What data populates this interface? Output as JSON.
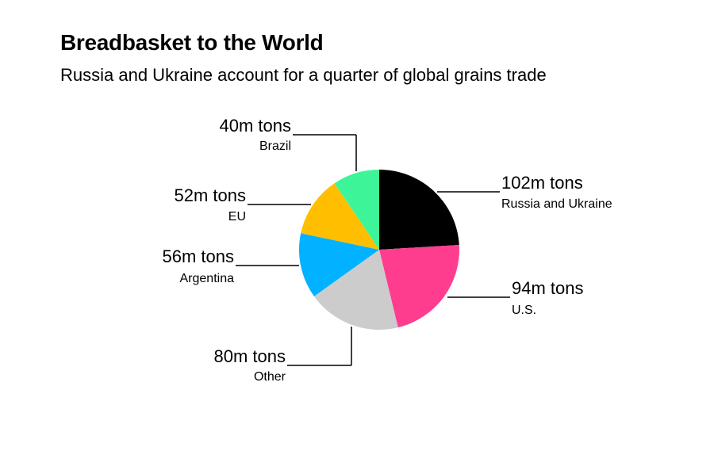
{
  "title": "Breadbasket to the World",
  "subtitle": "Russia and Ukraine account for a quarter of global grains trade",
  "chart_data": {
    "type": "pie",
    "unit": "m tons",
    "slices": [
      {
        "label": "Russia and Ukraine",
        "value": 102,
        "value_label": "102m tons",
        "color": "#000000"
      },
      {
        "label": "U.S.",
        "value": 94,
        "value_label": "94m tons",
        "color": "#FF3D8F"
      },
      {
        "label": "Other",
        "value": 80,
        "value_label": "80m tons",
        "color": "#CCCCCC"
      },
      {
        "label": "Argentina",
        "value": 56,
        "value_label": "56m tons",
        "color": "#00B2FF"
      },
      {
        "label": "EU",
        "value": 52,
        "value_label": "52m tons",
        "color": "#FFBF00"
      },
      {
        "label": "Brazil",
        "value": 40,
        "value_label": "40m tons",
        "color": "#3DF598"
      }
    ]
  }
}
